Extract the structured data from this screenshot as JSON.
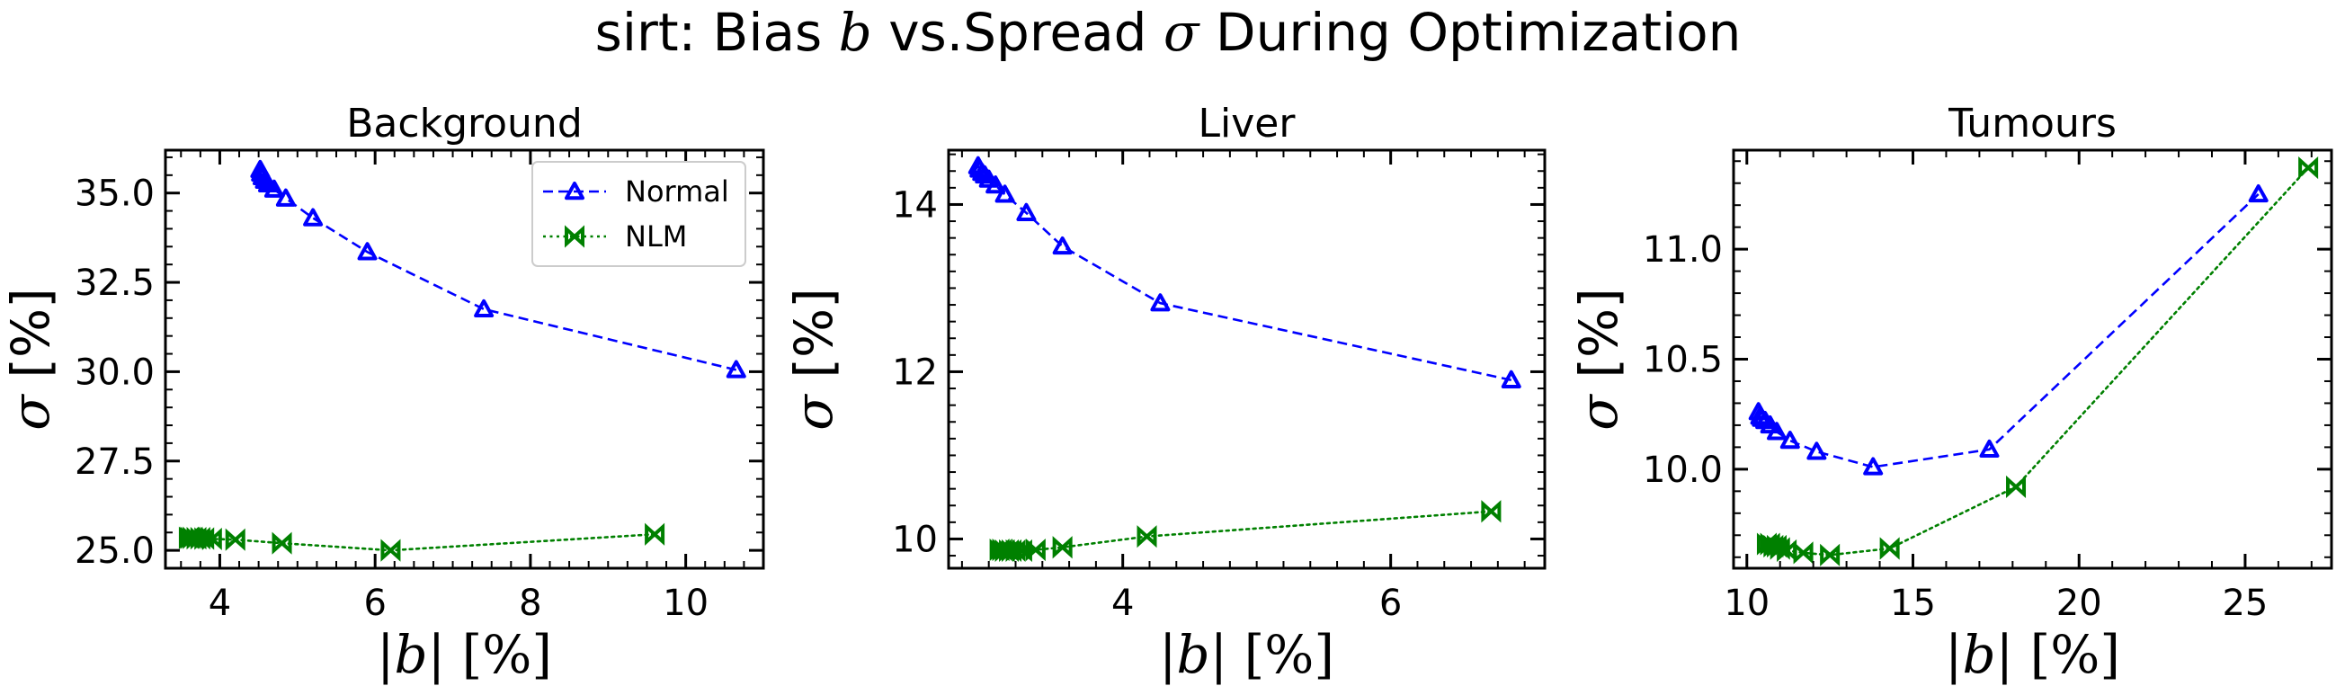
{
  "figure": {
    "title_prefix": "sirt: Bias ",
    "title_b": "b",
    "title_mid": " vs.Spread ",
    "title_sigma": "σ",
    "title_suffix": " During Optimization"
  },
  "chart_data": [
    {
      "type": "line",
      "title": "Background",
      "xlabel": "|b| [%]",
      "ylabel": "σ [%]",
      "xlim": [
        3.3,
        11.0
      ],
      "ylim": [
        24.5,
        36.2
      ],
      "xticks": [
        4,
        6,
        8,
        10
      ],
      "xtick_labels": [
        "4",
        "6",
        "8",
        "10"
      ],
      "yticks": [
        25.0,
        27.5,
        30.0,
        32.5,
        35.0
      ],
      "ytick_labels": [
        "25.0",
        "27.5",
        "30.0",
        "32.5",
        "35.0"
      ],
      "grid": false,
      "legend": "upper right",
      "series": [
        {
          "name": "Normal",
          "color": "#0000ff",
          "linestyle": "dashed",
          "marker": "tri-up",
          "x": [
            10.65,
            7.4,
            5.9,
            5.2,
            4.85,
            4.7,
            4.62,
            4.58,
            4.55,
            4.53,
            4.52
          ],
          "y": [
            30.05,
            31.75,
            33.35,
            34.3,
            34.85,
            35.1,
            35.25,
            35.35,
            35.45,
            35.55,
            35.65
          ]
        },
        {
          "name": "NLM",
          "color": "#008000",
          "linestyle": "dotted",
          "marker": "bowtie",
          "x": [
            9.6,
            6.2,
            4.8,
            4.2,
            3.9,
            3.8,
            3.75,
            3.7,
            3.65,
            3.62,
            3.6
          ],
          "y": [
            25.45,
            25.0,
            25.2,
            25.3,
            25.32,
            25.33,
            25.34,
            25.34,
            25.35,
            25.35,
            25.35
          ]
        }
      ]
    },
    {
      "type": "line",
      "title": "Liver",
      "xlabel": "|b| [%]",
      "ylabel": "σ [%]",
      "xlim": [
        2.7,
        7.15
      ],
      "ylim": [
        9.65,
        14.65
      ],
      "xticks": [
        4,
        6
      ],
      "xtick_labels": [
        "4",
        "6"
      ],
      "yticks": [
        10,
        12,
        14
      ],
      "ytick_labels": [
        "10",
        "12",
        "14"
      ],
      "grid": false,
      "series": [
        {
          "name": "Normal",
          "color": "#0000ff",
          "linestyle": "dashed",
          "marker": "tri-up",
          "x": [
            6.9,
            4.28,
            3.55,
            3.28,
            3.12,
            3.05,
            3.0,
            2.97,
            2.95,
            2.93,
            2.92
          ],
          "y": [
            11.9,
            12.82,
            13.5,
            13.9,
            14.12,
            14.23,
            14.3,
            14.35,
            14.38,
            14.42,
            14.46
          ]
        },
        {
          "name": "NLM",
          "color": "#008000",
          "linestyle": "dotted",
          "marker": "bowtie",
          "x": [
            6.75,
            4.18,
            3.55,
            3.35,
            3.25,
            3.2,
            3.17,
            3.15,
            3.12,
            3.1,
            3.08
          ],
          "y": [
            10.33,
            10.03,
            9.9,
            9.87,
            9.86,
            9.86,
            9.86,
            9.86,
            9.86,
            9.87,
            9.87
          ]
        }
      ]
    },
    {
      "type": "line",
      "title": "Tumours",
      "xlabel": "|b| [%]",
      "ylabel": "σ [%]",
      "xlim": [
        9.6,
        27.6
      ],
      "ylim": [
        9.55,
        11.45
      ],
      "xticks": [
        10,
        15,
        20,
        25
      ],
      "xtick_labels": [
        "10",
        "15",
        "20",
        "25"
      ],
      "yticks": [
        10.0,
        10.5,
        11.0
      ],
      "ytick_labels": [
        "10.0",
        "10.5",
        "11.0"
      ],
      "grid": false,
      "series": [
        {
          "name": "Normal",
          "color": "#0000ff",
          "linestyle": "dashed",
          "marker": "tri-up",
          "x": [
            25.4,
            17.3,
            13.8,
            12.1,
            11.3,
            10.9,
            10.7,
            10.55,
            10.45,
            10.4,
            10.35
          ],
          "y": [
            11.25,
            10.09,
            10.01,
            10.08,
            10.13,
            10.17,
            10.2,
            10.22,
            10.23,
            10.24,
            10.26
          ]
        },
        {
          "name": "NLM",
          "color": "#008000",
          "linestyle": "dotted",
          "marker": "bowtie",
          "x": [
            26.9,
            18.1,
            14.3,
            12.5,
            11.7,
            11.2,
            11.0,
            10.9,
            10.8,
            10.7,
            10.6
          ],
          "y": [
            11.37,
            9.92,
            9.64,
            9.61,
            9.62,
            9.63,
            9.64,
            9.65,
            9.65,
            9.66,
            9.66
          ]
        }
      ]
    }
  ]
}
